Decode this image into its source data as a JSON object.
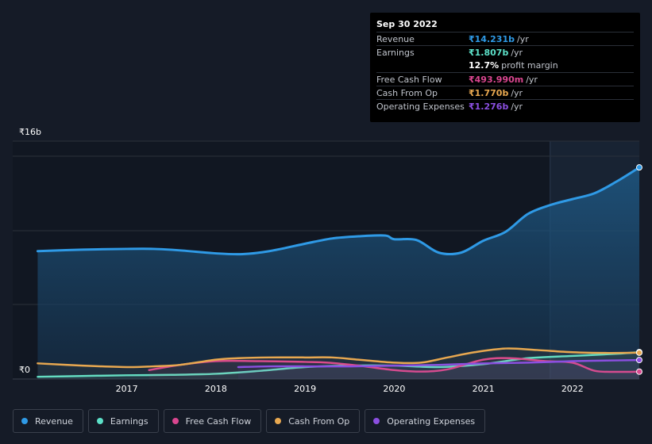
{
  "chart_data": {
    "type": "area",
    "y_unit_prefix": "₹",
    "ylim": [
      0,
      16
    ],
    "y_ticks": [
      {
        "value": 16,
        "label": "₹16b"
      },
      {
        "value": 0,
        "label": "₹0"
      }
    ],
    "x_ticks": [
      2017,
      2018,
      2019,
      2020,
      2021,
      2022
    ],
    "xlim": [
      2015.72,
      2022.75
    ],
    "forecast_start": 2021.75,
    "grid": true,
    "legend_position": "bottom",
    "series": [
      {
        "name": "Revenue",
        "color": "#2f9ae6",
        "filled": true,
        "points": [
          [
            2016.0,
            8.6
          ],
          [
            2016.5,
            8.7
          ],
          [
            2017.0,
            8.75
          ],
          [
            2017.3,
            8.75
          ],
          [
            2017.6,
            8.65
          ],
          [
            2018.0,
            8.45
          ],
          [
            2018.3,
            8.4
          ],
          [
            2018.6,
            8.6
          ],
          [
            2019.0,
            9.1
          ],
          [
            2019.3,
            9.45
          ],
          [
            2019.6,
            9.6
          ],
          [
            2019.9,
            9.65
          ],
          [
            2020.0,
            9.4
          ],
          [
            2020.25,
            9.35
          ],
          [
            2020.5,
            8.5
          ],
          [
            2020.75,
            8.5
          ],
          [
            2021.0,
            9.3
          ],
          [
            2021.25,
            9.9
          ],
          [
            2021.5,
            11.1
          ],
          [
            2021.75,
            11.7
          ],
          [
            2022.0,
            12.1
          ],
          [
            2022.25,
            12.5
          ],
          [
            2022.5,
            13.3
          ],
          [
            2022.75,
            14.231
          ]
        ]
      },
      {
        "name": "Earnings",
        "color": "#5ce0c8",
        "filled": false,
        "points": [
          [
            2016.0,
            0.15
          ],
          [
            2016.5,
            0.2
          ],
          [
            2017.0,
            0.25
          ],
          [
            2017.5,
            0.28
          ],
          [
            2018.0,
            0.35
          ],
          [
            2018.5,
            0.55
          ],
          [
            2019.0,
            0.8
          ],
          [
            2019.5,
            0.9
          ],
          [
            2020.0,
            0.9
          ],
          [
            2020.5,
            0.8
          ],
          [
            2021.0,
            1.0
          ],
          [
            2021.5,
            1.4
          ],
          [
            2022.0,
            1.55
          ],
          [
            2022.5,
            1.7
          ],
          [
            2022.75,
            1.807
          ]
        ]
      },
      {
        "name": "Free Cash Flow",
        "color": "#d9468f",
        "filled": false,
        "points": [
          [
            2017.25,
            0.6
          ],
          [
            2017.6,
            0.95
          ],
          [
            2018.0,
            1.2
          ],
          [
            2018.5,
            1.2
          ],
          [
            2019.0,
            1.15
          ],
          [
            2019.25,
            1.1
          ],
          [
            2019.6,
            0.9
          ],
          [
            2020.0,
            0.6
          ],
          [
            2020.3,
            0.5
          ],
          [
            2020.6,
            0.65
          ],
          [
            2021.0,
            1.3
          ],
          [
            2021.3,
            1.4
          ],
          [
            2021.7,
            1.2
          ],
          [
            2022.0,
            1.1
          ],
          [
            2022.25,
            0.55
          ],
          [
            2022.5,
            0.48
          ],
          [
            2022.75,
            0.494
          ]
        ]
      },
      {
        "name": "Cash From Op",
        "color": "#e8a850",
        "filled": false,
        "points": [
          [
            2016.0,
            1.05
          ],
          [
            2016.5,
            0.9
          ],
          [
            2017.0,
            0.8
          ],
          [
            2017.3,
            0.85
          ],
          [
            2017.6,
            0.95
          ],
          [
            2018.0,
            1.3
          ],
          [
            2018.25,
            1.4
          ],
          [
            2018.6,
            1.45
          ],
          [
            2019.0,
            1.45
          ],
          [
            2019.3,
            1.45
          ],
          [
            2019.6,
            1.3
          ],
          [
            2020.0,
            1.1
          ],
          [
            2020.3,
            1.1
          ],
          [
            2020.6,
            1.45
          ],
          [
            2020.9,
            1.8
          ],
          [
            2021.25,
            2.05
          ],
          [
            2021.6,
            1.95
          ],
          [
            2022.0,
            1.8
          ],
          [
            2022.4,
            1.75
          ],
          [
            2022.75,
            1.77
          ]
        ]
      },
      {
        "name": "Operating Expenses",
        "color": "#8b4fe0",
        "filled": false,
        "points": [
          [
            2018.25,
            0.8
          ],
          [
            2018.6,
            0.85
          ],
          [
            2019.0,
            0.85
          ],
          [
            2019.5,
            0.85
          ],
          [
            2020.0,
            0.9
          ],
          [
            2020.5,
            0.95
          ],
          [
            2021.0,
            1.05
          ],
          [
            2021.5,
            1.1
          ],
          [
            2022.0,
            1.2
          ],
          [
            2022.5,
            1.25
          ],
          [
            2022.75,
            1.276
          ]
        ]
      }
    ]
  },
  "tooltip": {
    "date": "Sep 30 2022",
    "rows": [
      {
        "label": "Revenue",
        "value": "₹14.231b",
        "unit": "/yr",
        "color": "#2f9ae6"
      },
      {
        "label": "Earnings",
        "value": "₹1.807b",
        "unit": "/yr",
        "color": "#5ce0c8"
      },
      {
        "label": "",
        "value": "12.7%",
        "unit": "profit margin",
        "color": "#ffffff"
      },
      {
        "label": "Free Cash Flow",
        "value": "₹493.990m",
        "unit": "/yr",
        "color": "#d9468f"
      },
      {
        "label": "Cash From Op",
        "value": "₹1.770b",
        "unit": "/yr",
        "color": "#e8a850"
      },
      {
        "label": "Operating Expenses",
        "value": "₹1.276b",
        "unit": "/yr",
        "color": "#8b4fe0"
      }
    ]
  },
  "legend": [
    {
      "label": "Revenue",
      "color": "#2f9ae6"
    },
    {
      "label": "Earnings",
      "color": "#5ce0c8"
    },
    {
      "label": "Free Cash Flow",
      "color": "#d9468f"
    },
    {
      "label": "Cash From Op",
      "color": "#e8a850"
    },
    {
      "label": "Operating Expenses",
      "color": "#8b4fe0"
    }
  ]
}
